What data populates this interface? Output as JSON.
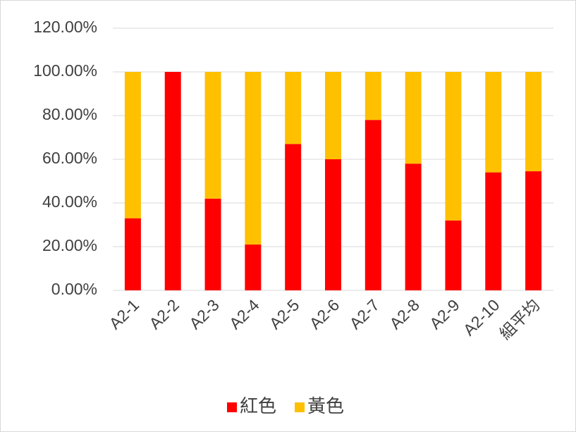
{
  "chart_data": {
    "type": "stacked_bar",
    "categories": [
      "A2-1",
      "A2-2",
      "A2-3",
      "A2-4",
      "A2-5",
      "A2-6",
      "A2-7",
      "A2-8",
      "A2-9",
      "A2-10",
      "組平均"
    ],
    "series": [
      {
        "name": "紅色",
        "color": "#ff0000",
        "values": [
          33,
          100,
          42,
          21,
          67,
          60,
          78,
          58,
          32,
          54,
          54.5
        ]
      },
      {
        "name": "黃色",
        "color": "#ffc000",
        "values": [
          67,
          0,
          58,
          79,
          33,
          40,
          22,
          42,
          68,
          46,
          45.5
        ]
      }
    ],
    "ylim": [
      0,
      120
    ],
    "yticks": [
      {
        "value": 0,
        "label": "0.00%"
      },
      {
        "value": 20,
        "label": "20.00%"
      },
      {
        "value": 40,
        "label": "40.00%"
      },
      {
        "value": 60,
        "label": "60.00%"
      },
      {
        "value": 80,
        "label": "80.00%"
      },
      {
        "value": 100,
        "label": "100.00%"
      },
      {
        "value": 120,
        "label": "120.00%"
      }
    ],
    "grid": true,
    "legend": "bottom"
  }
}
